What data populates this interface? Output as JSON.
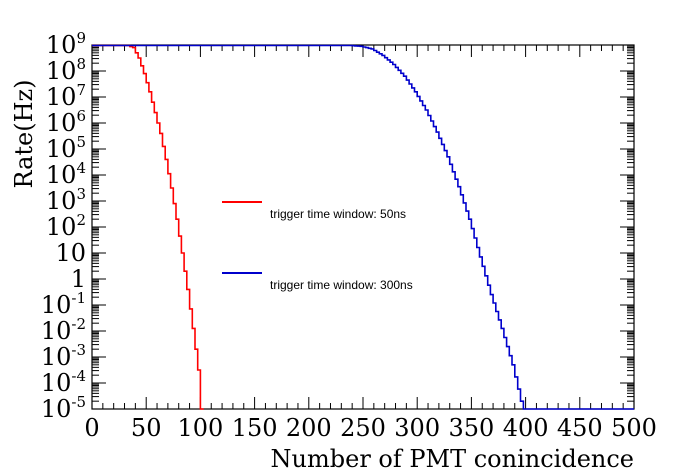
{
  "chart_data": {
    "type": "line",
    "xlabel": "Number of PMT conincidence",
    "ylabel": "Rate(Hz)",
    "xlim": [
      0,
      500
    ],
    "ylim_log10": [
      -5,
      9
    ],
    "yscale": "log",
    "x_ticks": [
      "0",
      "50",
      "100",
      "150",
      "200",
      "250",
      "300",
      "350",
      "400",
      "450",
      "500"
    ],
    "y_ticks": [
      {
        "base": "10",
        "exp": "9",
        "log": 9
      },
      {
        "base": "10",
        "exp": "8",
        "log": 8
      },
      {
        "base": "10",
        "exp": "7",
        "log": 7
      },
      {
        "base": "10",
        "exp": "6",
        "log": 6
      },
      {
        "base": "10",
        "exp": "5",
        "log": 5
      },
      {
        "base": "10",
        "exp": "4",
        "log": 4
      },
      {
        "base": "10",
        "exp": "3",
        "log": 3
      },
      {
        "base": "10",
        "exp": "2",
        "log": 2
      },
      {
        "base": "10",
        "exp": "",
        "log": 1
      },
      {
        "base": "1",
        "exp": "",
        "log": 0
      },
      {
        "base": "10",
        "exp": "-1",
        "log": -1
      },
      {
        "base": "10",
        "exp": "-2",
        "log": -2
      },
      {
        "base": "10",
        "exp": "-3",
        "log": -3
      },
      {
        "base": "10",
        "exp": "-4",
        "log": -4
      },
      {
        "base": "10",
        "exp": "-5",
        "log": -5
      }
    ],
    "grid": false,
    "legend_position": "center-left",
    "series": [
      {
        "name": "trigger time window: 50ns",
        "color": "#ff0000",
        "x": [
          0,
          35,
          40,
          45,
          50,
          55,
          60,
          65,
          70,
          75,
          80,
          85,
          90,
          95,
          100,
          103
        ],
        "log10_y": [
          8.98,
          8.98,
          8.9,
          8.5,
          7.9,
          7.2,
          6.4,
          5.6,
          4.6,
          3.5,
          2.3,
          1.0,
          -0.4,
          -1.9,
          -3.5,
          -5
        ]
      },
      {
        "name": "trigger time window: 300ns",
        "color": "#0000cc",
        "x": [
          0,
          240,
          250,
          260,
          270,
          280,
          290,
          300,
          310,
          320,
          330,
          340,
          350,
          360,
          370,
          380,
          390,
          398,
          400,
          500
        ],
        "log10_y": [
          8.98,
          8.98,
          8.95,
          8.85,
          8.6,
          8.25,
          7.8,
          7.2,
          6.5,
          5.65,
          4.7,
          3.55,
          2.3,
          0.85,
          -0.6,
          -1.9,
          -3.3,
          -4.7,
          -5,
          -5
        ]
      }
    ]
  }
}
